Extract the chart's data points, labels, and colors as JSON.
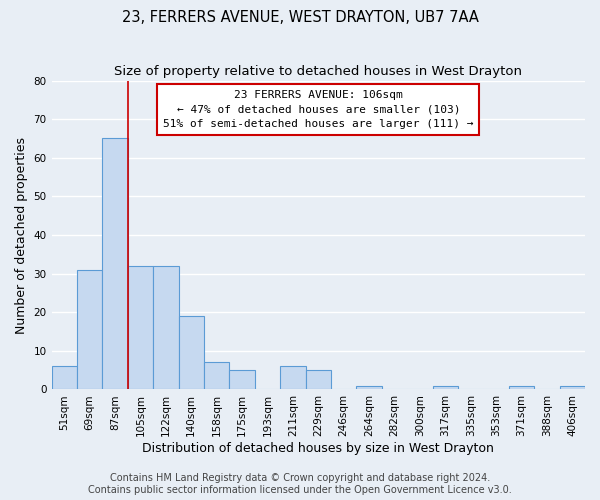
{
  "title": "23, FERRERS AVENUE, WEST DRAYTON, UB7 7AA",
  "subtitle": "Size of property relative to detached houses in West Drayton",
  "xlabel": "Distribution of detached houses by size in West Drayton",
  "ylabel": "Number of detached properties",
  "bin_labels": [
    "51sqm",
    "69sqm",
    "87sqm",
    "105sqm",
    "122sqm",
    "140sqm",
    "158sqm",
    "175sqm",
    "193sqm",
    "211sqm",
    "229sqm",
    "246sqm",
    "264sqm",
    "282sqm",
    "300sqm",
    "317sqm",
    "335sqm",
    "353sqm",
    "371sqm",
    "388sqm",
    "406sqm"
  ],
  "bar_heights": [
    6,
    31,
    65,
    32,
    32,
    19,
    7,
    5,
    0,
    6,
    5,
    0,
    1,
    0,
    0,
    1,
    0,
    0,
    1,
    0,
    1
  ],
  "bar_color": "#c6d9f0",
  "bar_edge_color": "#5b9bd5",
  "vline_after_index": 2,
  "vline_color": "#cc0000",
  "annotation_title": "23 FERRERS AVENUE: 106sqm",
  "annotation_line1": "← 47% of detached houses are smaller (103)",
  "annotation_line2": "51% of semi-detached houses are larger (111) →",
  "annotation_box_color": "#ffffff",
  "annotation_box_edge": "#cc0000",
  "ylim": [
    0,
    80
  ],
  "yticks": [
    0,
    10,
    20,
    30,
    40,
    50,
    60,
    70,
    80
  ],
  "footer1": "Contains HM Land Registry data © Crown copyright and database right 2024.",
  "footer2": "Contains public sector information licensed under the Open Government Licence v3.0.",
  "background_color": "#e8eef5",
  "plot_background": "#e8eef5",
  "grid_color": "#ffffff",
  "title_fontsize": 10.5,
  "subtitle_fontsize": 9.5,
  "axis_label_fontsize": 9,
  "tick_fontsize": 7.5,
  "footer_fontsize": 7
}
